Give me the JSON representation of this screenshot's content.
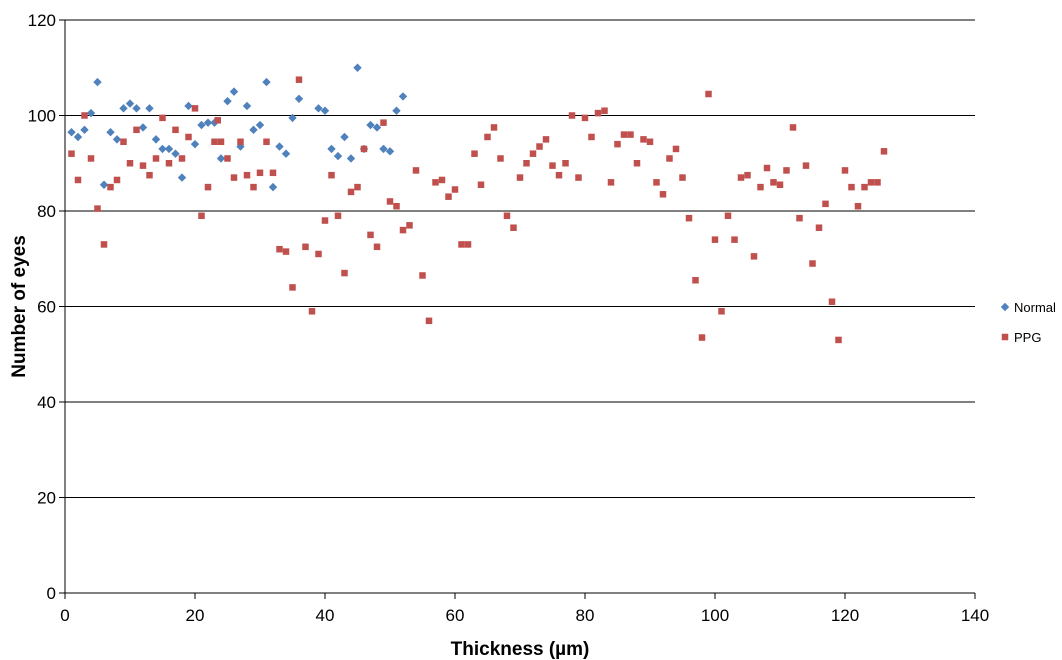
{
  "chart_data": {
    "type": "scatter",
    "xlabel": "Thickness (µm)",
    "ylabel": "Number of eyes",
    "xlim": [
      0,
      140
    ],
    "ylim": [
      0,
      120
    ],
    "xticks": [
      0,
      20,
      40,
      60,
      80,
      100,
      120,
      140
    ],
    "yticks": [
      0,
      20,
      40,
      60,
      80,
      100,
      120
    ],
    "grid": "horizontal",
    "legend_position": "right",
    "series": [
      {
        "name": "Normal",
        "color": "#4f81bd",
        "marker": "diamond",
        "points": [
          [
            1,
            96.5
          ],
          [
            2,
            95.5
          ],
          [
            3,
            97
          ],
          [
            4,
            100.5
          ],
          [
            5,
            107
          ],
          [
            6,
            85.5
          ],
          [
            7,
            96.5
          ],
          [
            8,
            95
          ],
          [
            9,
            101.5
          ],
          [
            10,
            102.5
          ],
          [
            11,
            101.5
          ],
          [
            12,
            97.5
          ],
          [
            13,
            101.5
          ],
          [
            14,
            95
          ],
          [
            15,
            93
          ],
          [
            16,
            93
          ],
          [
            17,
            92
          ],
          [
            18,
            87
          ],
          [
            19,
            102
          ],
          [
            20,
            94
          ],
          [
            21,
            98
          ],
          [
            22,
            98.5
          ],
          [
            23,
            98.5
          ],
          [
            24,
            91
          ],
          [
            25,
            103
          ],
          [
            26,
            105
          ],
          [
            27,
            93.5
          ],
          [
            28,
            102
          ],
          [
            29,
            97
          ],
          [
            30,
            98
          ],
          [
            31,
            107
          ],
          [
            32,
            85
          ],
          [
            33,
            93.5
          ],
          [
            34,
            92
          ],
          [
            35,
            99.5
          ],
          [
            36,
            103.5
          ],
          [
            39,
            101.5
          ],
          [
            40,
            101
          ],
          [
            41,
            93
          ],
          [
            42,
            91.5
          ],
          [
            43,
            95.5
          ],
          [
            44,
            91
          ],
          [
            45,
            110
          ],
          [
            46,
            93
          ],
          [
            47,
            98
          ],
          [
            48,
            97.5
          ],
          [
            49,
            93
          ],
          [
            50,
            92.5
          ],
          [
            51,
            101
          ],
          [
            52,
            104
          ]
        ]
      },
      {
        "name": "PPG",
        "color": "#c0504d",
        "marker": "square",
        "points": [
          [
            1,
            92
          ],
          [
            2,
            86.5
          ],
          [
            3,
            100
          ],
          [
            4,
            91
          ],
          [
            5,
            80.5
          ],
          [
            6,
            73
          ],
          [
            7,
            85
          ],
          [
            8,
            86.5
          ],
          [
            9,
            94.5
          ],
          [
            10,
            90
          ],
          [
            11,
            97
          ],
          [
            12,
            89.5
          ],
          [
            13,
            87.5
          ],
          [
            14,
            91
          ],
          [
            15,
            99.5
          ],
          [
            16,
            90
          ],
          [
            17,
            97
          ],
          [
            18,
            91
          ],
          [
            19,
            95.5
          ],
          [
            20,
            101.5
          ],
          [
            21,
            79
          ],
          [
            22,
            85
          ],
          [
            23,
            94.5
          ],
          [
            23.5,
            99
          ],
          [
            24,
            94.5
          ],
          [
            25,
            91
          ],
          [
            26,
            87
          ],
          [
            27,
            94.5
          ],
          [
            28,
            87.5
          ],
          [
            29,
            85
          ],
          [
            30,
            88
          ],
          [
            31,
            94.5
          ],
          [
            32,
            88
          ],
          [
            33,
            72
          ],
          [
            34,
            71.5
          ],
          [
            35,
            64
          ],
          [
            36,
            107.5
          ],
          [
            37,
            72.5
          ],
          [
            38,
            59
          ],
          [
            39,
            71
          ],
          [
            40,
            78
          ],
          [
            41,
            87.5
          ],
          [
            42,
            79
          ],
          [
            43,
            67
          ],
          [
            44,
            84
          ],
          [
            45,
            85
          ],
          [
            46,
            93
          ],
          [
            47,
            75
          ],
          [
            48,
            72.5
          ],
          [
            49,
            98.5
          ],
          [
            50,
            82
          ],
          [
            51,
            81
          ],
          [
            52,
            76
          ],
          [
            53,
            77
          ],
          [
            54,
            88.5
          ],
          [
            55,
            66.5
          ],
          [
            56,
            57
          ],
          [
            57,
            86
          ],
          [
            58,
            86.5
          ],
          [
            59,
            83
          ],
          [
            60,
            84.5
          ],
          [
            61,
            73
          ],
          [
            62,
            73
          ],
          [
            63,
            92
          ],
          [
            64,
            85.5
          ],
          [
            65,
            95.5
          ],
          [
            66,
            97.5
          ],
          [
            67,
            91
          ],
          [
            68,
            79
          ],
          [
            69,
            76.5
          ],
          [
            70,
            87
          ],
          [
            71,
            90
          ],
          [
            72,
            92
          ],
          [
            73,
            93.5
          ],
          [
            74,
            95
          ],
          [
            75,
            89.5
          ],
          [
            76,
            87.5
          ],
          [
            77,
            90
          ],
          [
            78,
            100
          ],
          [
            79,
            87
          ],
          [
            80,
            99.5
          ],
          [
            81,
            95.5
          ],
          [
            82,
            100.5
          ],
          [
            83,
            101
          ],
          [
            84,
            86
          ],
          [
            85,
            94
          ],
          [
            86,
            96
          ],
          [
            87,
            96
          ],
          [
            88,
            90
          ],
          [
            89,
            95
          ],
          [
            90,
            94.5
          ],
          [
            91,
            86
          ],
          [
            92,
            83.5
          ],
          [
            93,
            91
          ],
          [
            94,
            93
          ],
          [
            95,
            87
          ],
          [
            96,
            78.5
          ],
          [
            97,
            65.5
          ],
          [
            98,
            53.5
          ],
          [
            99,
            104.5
          ],
          [
            100,
            74
          ],
          [
            101,
            59
          ],
          [
            102,
            79
          ],
          [
            103,
            74
          ],
          [
            104,
            87
          ],
          [
            105,
            87.5
          ],
          [
            106,
            70.5
          ],
          [
            107,
            85
          ],
          [
            108,
            89
          ],
          [
            109,
            86
          ],
          [
            110,
            85.5
          ],
          [
            111,
            88.5
          ],
          [
            112,
            97.5
          ],
          [
            113,
            78.5
          ],
          [
            114,
            89.5
          ],
          [
            115,
            69
          ],
          [
            116,
            76.5
          ],
          [
            117,
            81.5
          ],
          [
            118,
            61
          ],
          [
            119,
            53
          ],
          [
            120,
            88.5
          ],
          [
            121,
            85
          ],
          [
            122,
            81
          ],
          [
            123,
            85
          ],
          [
            124,
            86
          ],
          [
            125,
            86
          ],
          [
            126,
            92.5
          ]
        ]
      }
    ]
  }
}
